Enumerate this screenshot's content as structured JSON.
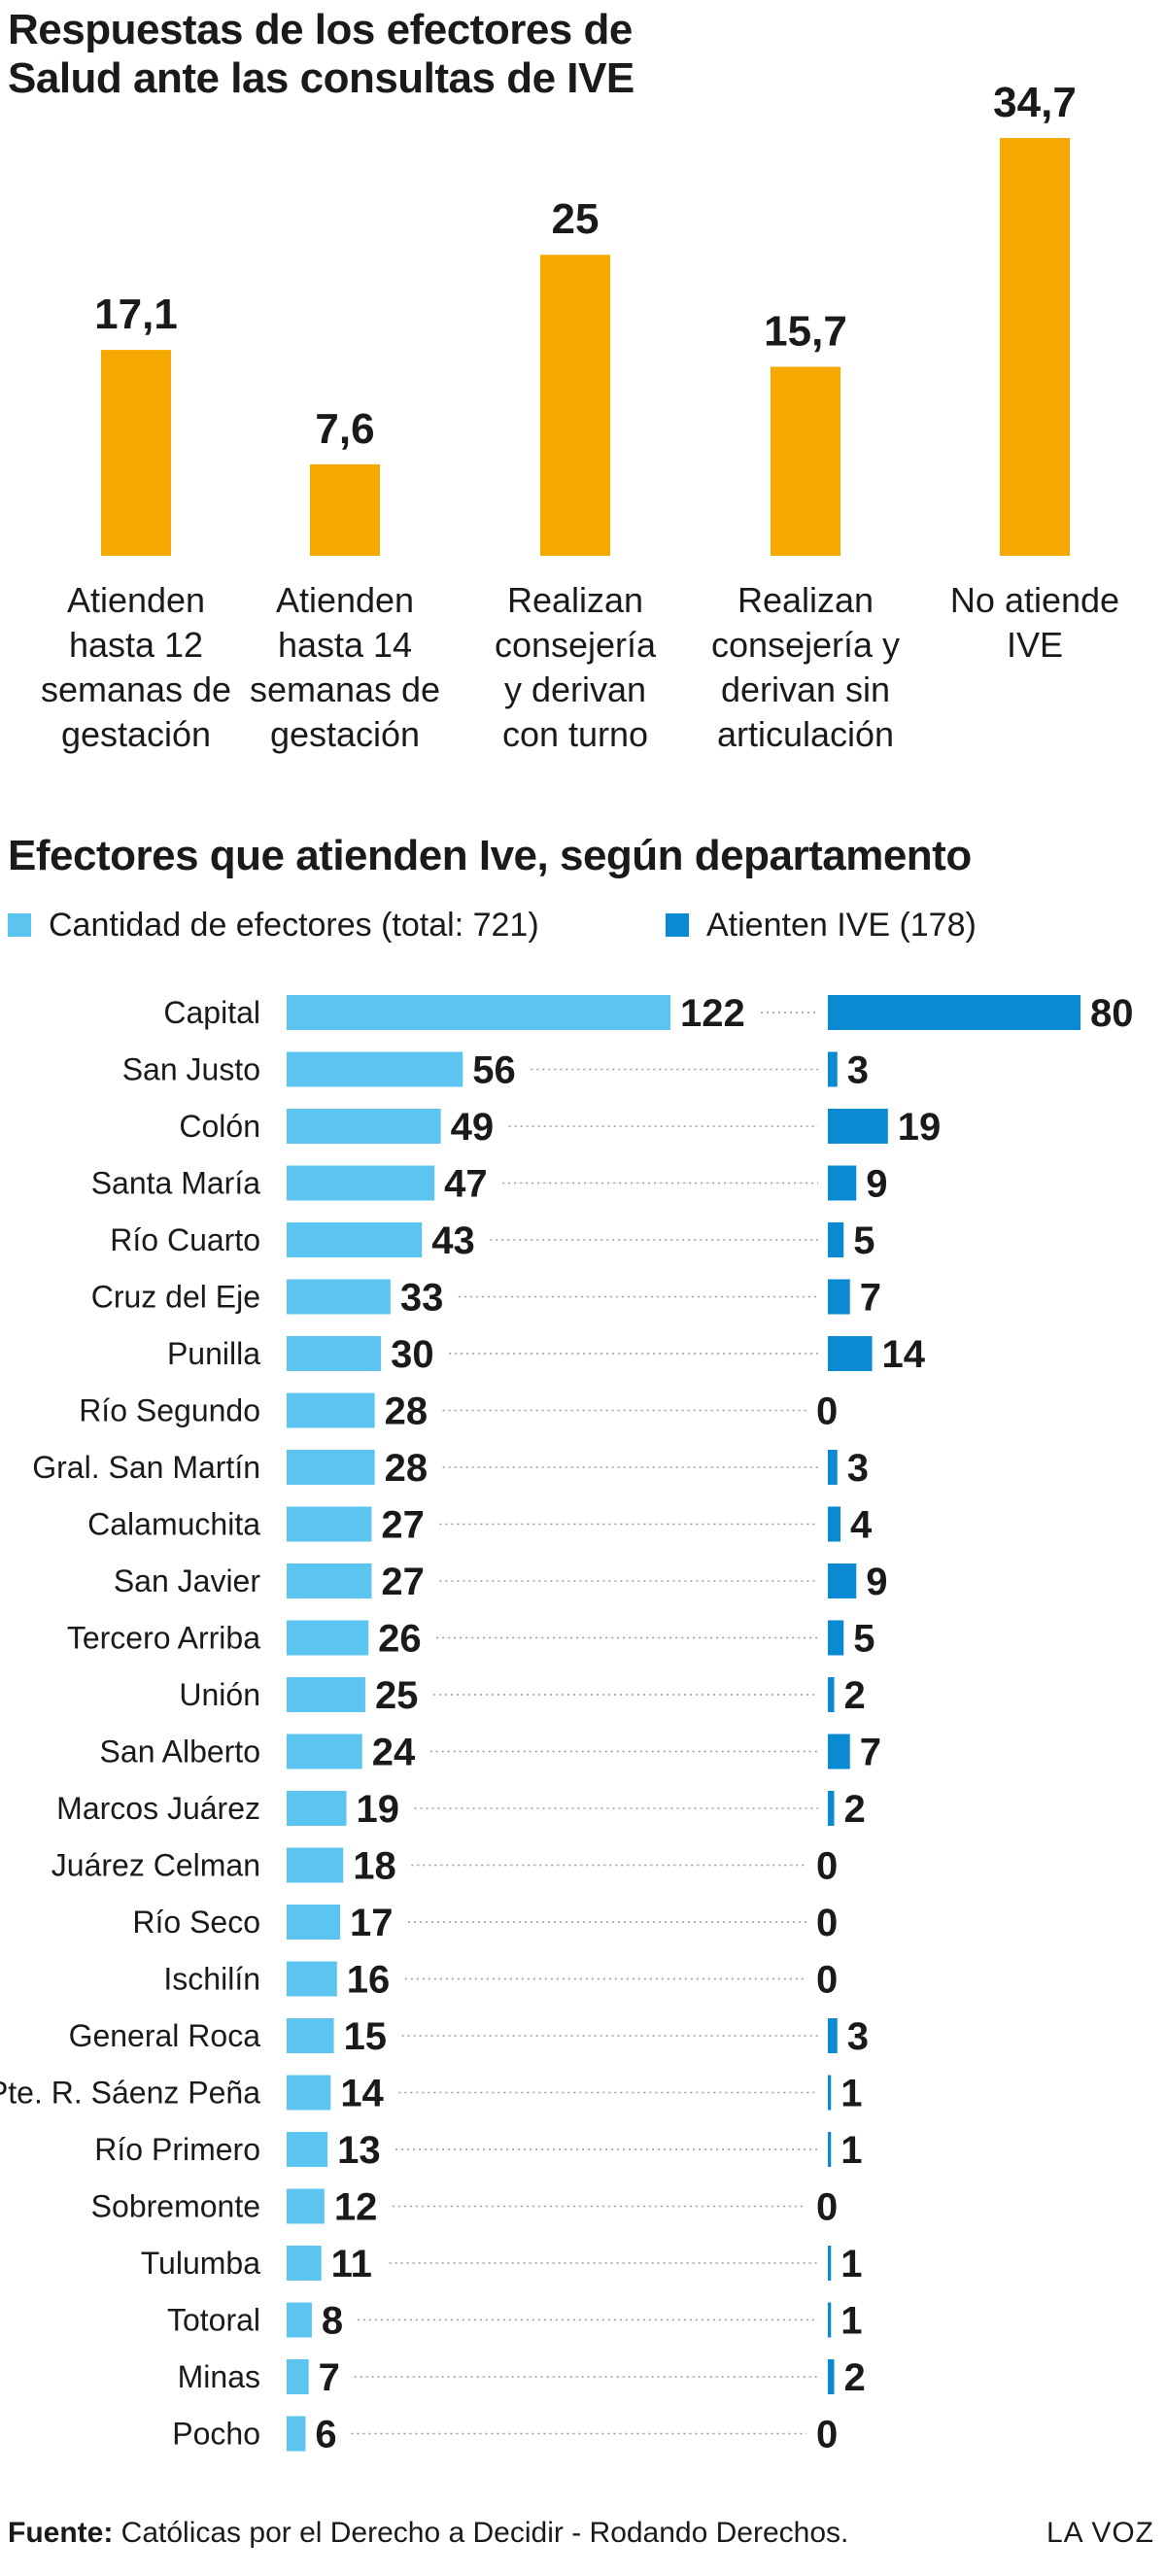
{
  "header": {
    "title": "Respuestas de los efectores de Salud ante las consultas de IVE"
  },
  "chart_data": [
    {
      "type": "bar",
      "title": "Respuestas de los efectores de Salud ante las consultas de IVE",
      "categories": [
        [
          "Atienden",
          "hasta 12",
          "semanas de",
          "gestación"
        ],
        [
          "Atienden",
          "hasta 14",
          "semanas de",
          "gestación"
        ],
        [
          "Realizan",
          "consejería",
          "y derivan",
          "con turno"
        ],
        [
          "Realizan",
          "consejería y",
          "derivan sin",
          "articulación"
        ],
        [
          "No atiende",
          "IVE"
        ]
      ],
      "values": [
        17.1,
        7.6,
        25,
        15.7,
        34.7
      ],
      "value_labels": [
        "17,1",
        "7,6",
        "25",
        "15,7",
        "34,7"
      ],
      "ylim": [
        0,
        34.7
      ],
      "grid": false,
      "color": "#F5A800"
    },
    {
      "type": "bar",
      "orientation": "horizontal",
      "title": "Efectores que atienden Ive, según departamento",
      "categories": [
        "Capital",
        "San Justo",
        "Colón",
        "Santa María",
        "Río Cuarto",
        "Cruz del Eje",
        "Punilla",
        "Río Segundo",
        "Gral. San Martín",
        "Calamuchita",
        "San Javier",
        "Tercero Arriba",
        "Unión",
        "San Alberto",
        "Marcos Juárez",
        "Juárez Celman",
        "Río Seco",
        "Ischilín",
        "General Roca",
        "Pte. R. Sáenz Peña",
        "Río Primero",
        "Sobremonte",
        "Tulumba",
        "Totoral",
        "Minas",
        "Pocho"
      ],
      "series": [
        {
          "name": "Cantidad de efectores (total: 721)",
          "color": "#5BC5F0",
          "values": [
            122,
            56,
            49,
            47,
            43,
            33,
            30,
            28,
            28,
            27,
            27,
            26,
            25,
            24,
            19,
            18,
            17,
            16,
            15,
            14,
            13,
            12,
            11,
            8,
            7,
            6
          ]
        },
        {
          "name": "Atienten IVE (178)",
          "color": "#0A8AD2",
          "values": [
            80,
            3,
            19,
            9,
            5,
            7,
            14,
            0,
            3,
            4,
            9,
            5,
            2,
            7,
            2,
            0,
            0,
            0,
            3,
            1,
            1,
            0,
            1,
            1,
            2,
            0
          ]
        }
      ],
      "legend": "top-left",
      "grid": false
    }
  ],
  "footer": {
    "source_label": "Fuente:",
    "source_text": " Católicas por el Derecho a Decidir - Rodando Derechos.",
    "brand": "LA VOZ"
  }
}
